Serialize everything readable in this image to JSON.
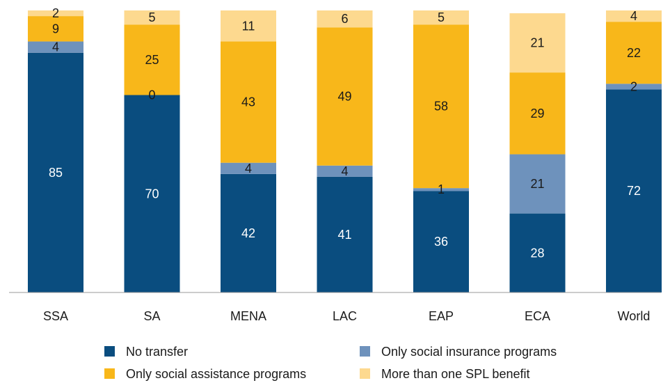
{
  "chart_data": {
    "type": "bar",
    "stacked": true,
    "categories": [
      "SSA",
      "SA",
      "MENA",
      "LAC",
      "EAP",
      "ECA",
      "World"
    ],
    "series": [
      {
        "name": "No transfer",
        "color": "#0a4d7f",
        "label_color": "#ffffff",
        "values": [
          85,
          70,
          42,
          41,
          36,
          28,
          72
        ]
      },
      {
        "name": "Only social insurance programs",
        "color": "#6e92bc",
        "label_color": "#1a1a1a",
        "values": [
          4,
          0,
          4,
          4,
          1,
          21,
          2
        ]
      },
      {
        "name": "Only social assistance programs",
        "color": "#f8b71a",
        "label_color": "#1a1a1a",
        "values": [
          9,
          25,
          43,
          49,
          58,
          29,
          22
        ]
      },
      {
        "name": "More than one SPL benefit",
        "color": "#fdd98f",
        "label_color": "#1a1a1a",
        "values": [
          2,
          5,
          11,
          6,
          5,
          21,
          4
        ]
      }
    ],
    "ylim": [
      0,
      100
    ],
    "grid": false,
    "legend_position": "bottom"
  }
}
